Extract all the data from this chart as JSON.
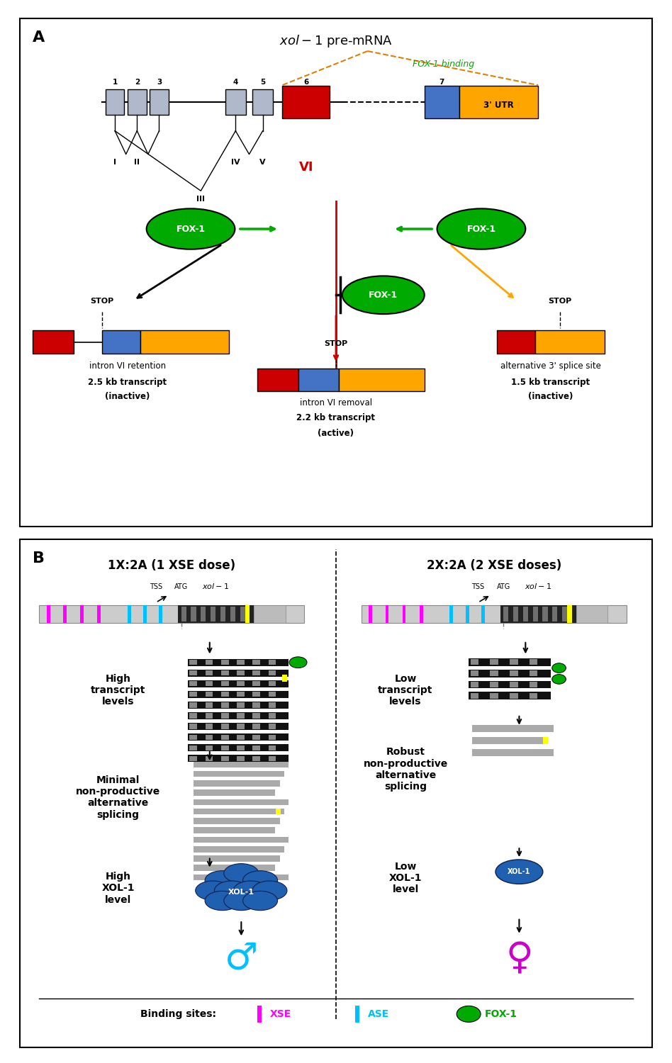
{
  "panel_A_label": "A",
  "panel_B_label": "B",
  "panel_A_title": "xol-1 pre-mRNA",
  "panel_B_left_title": "1X:2A (1 XSE dose)",
  "panel_B_right_title": "2X:2A (2 XSE doses)",
  "colors": {
    "red": "#CC0000",
    "blue": "#4472C4",
    "orange": "#FFA500",
    "green": "#00AA00",
    "dark_orange": "#E08000",
    "gray_exon": "#B0B8CC",
    "xse_pink": "#FF00FF",
    "ase_cyan": "#00BFFF",
    "xol1_blue": "#2060B0",
    "transcript_dark": "#111111",
    "transcript_gray": "#AAAAAA",
    "light_gray_bar": "#CCCCCC"
  }
}
